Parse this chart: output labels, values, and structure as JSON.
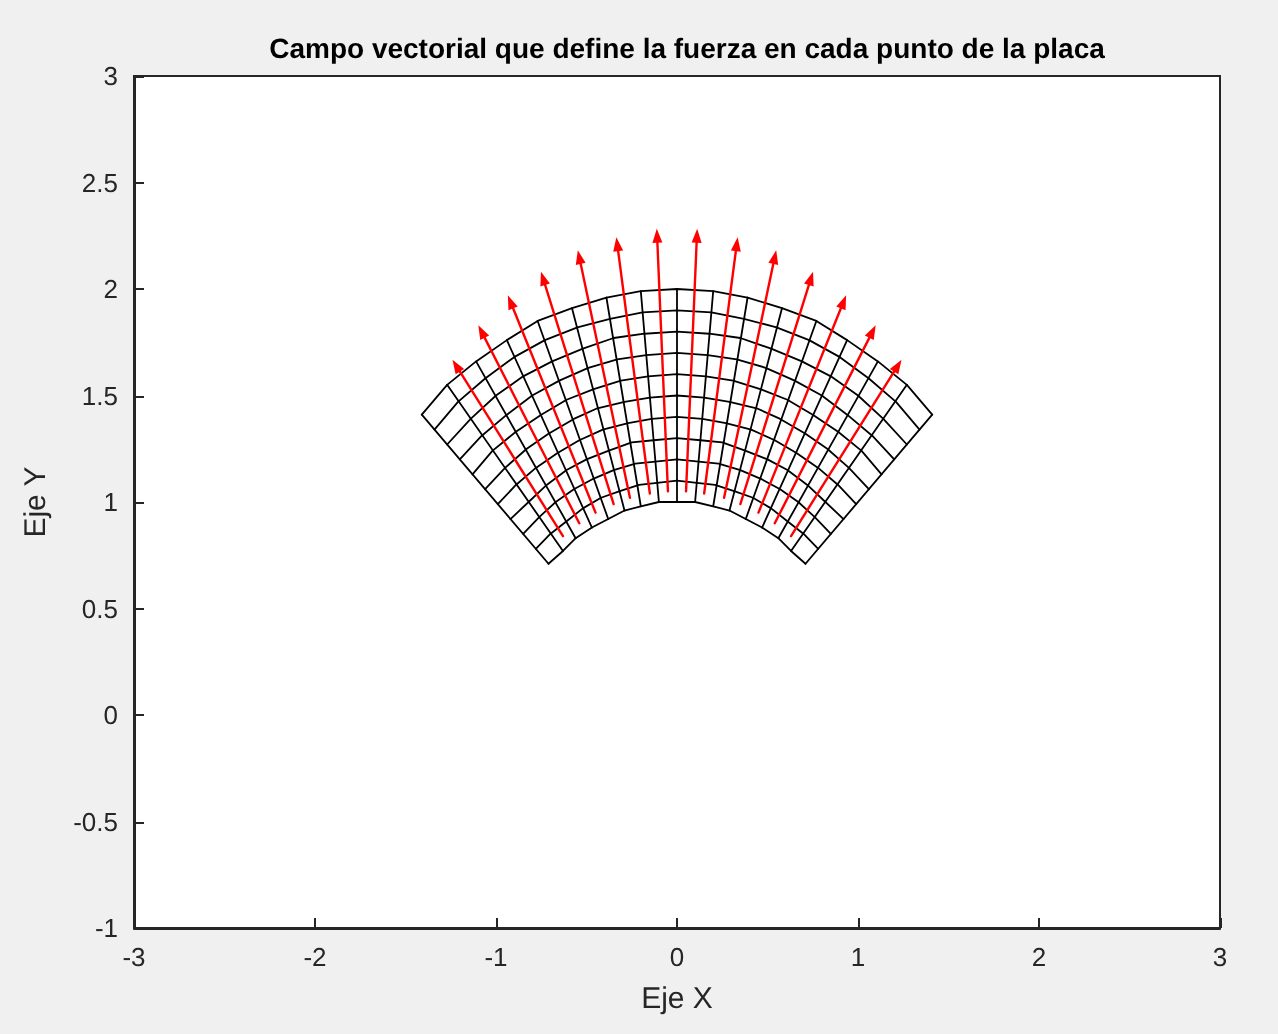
{
  "chart_data": {
    "type": "line",
    "title": "Campo vectorial que define la fuerza en cada punto de la placa",
    "xlabel": "Eje X",
    "ylabel": "Eje Y",
    "xlim": [
      -3,
      3
    ],
    "xticks": [
      -3,
      -2,
      -1,
      0,
      1,
      2,
      3
    ],
    "ylim": [
      -1,
      3
    ],
    "yticks": [
      -1,
      -0.5,
      0,
      0.5,
      1,
      1.5,
      2,
      2.5,
      3
    ],
    "marker": "none",
    "line_style": "solid",
    "series": [
      {
        "color": "#000000",
        "x": [
          -0.71,
          -0.63,
          -0.56,
          -0.47,
          -0.38,
          -0.29,
          -0.2,
          -0.1,
          0,
          0.1,
          0.2,
          0.29,
          0.38,
          0.47,
          0.56,
          0.63,
          0.71
        ],
        "values": [
          0.71,
          0.77,
          0.83,
          0.88,
          0.92,
          0.96,
          0.98,
          1.0,
          1,
          1.0,
          0.98,
          0.96,
          0.92,
          0.88,
          0.83,
          0.77,
          0.71
        ]
      },
      {
        "color": "#000000",
        "x": [
          -0.78,
          -0.7,
          -0.61,
          -0.52,
          -0.42,
          -0.32,
          -0.21,
          -0.11,
          0,
          0.11,
          0.21,
          0.32,
          0.42,
          0.52,
          0.61,
          0.7,
          0.78
        ],
        "values": [
          0.78,
          0.85,
          0.91,
          0.97,
          1.02,
          1.05,
          1.08,
          1.09,
          1.1,
          1.09,
          1.08,
          1.05,
          1.02,
          0.97,
          0.91,
          0.85,
          0.78
        ]
      },
      {
        "color": "#000000",
        "x": [
          -0.85,
          -0.76,
          -0.67,
          -0.57,
          -0.46,
          -0.35,
          -0.23,
          -0.12,
          0,
          0.12,
          0.23,
          0.35,
          0.46,
          0.57,
          0.67,
          0.76,
          0.85
        ],
        "values": [
          0.85,
          0.93,
          1.0,
          1.06,
          1.11,
          1.15,
          1.18,
          1.19,
          1.2,
          1.19,
          1.18,
          1.15,
          1.11,
          1.06,
          1.0,
          0.93,
          0.85
        ]
      },
      {
        "color": "#000000",
        "x": [
          -0.92,
          -0.82,
          -0.72,
          -0.61,
          -0.5,
          -0.38,
          -0.25,
          -0.13,
          0,
          0.13,
          0.25,
          0.38,
          0.5,
          0.61,
          0.72,
          0.82,
          0.92
        ],
        "values": [
          0.92,
          1.0,
          1.08,
          1.15,
          1.2,
          1.24,
          1.28,
          1.29,
          1.3,
          1.29,
          1.28,
          1.24,
          1.2,
          1.15,
          1.08,
          1.0,
          0.92
        ]
      },
      {
        "color": "#000000",
        "x": [
          -0.99,
          -0.89,
          -0.78,
          -0.66,
          -0.54,
          -0.41,
          -0.27,
          -0.14,
          0,
          0.14,
          0.27,
          0.41,
          0.54,
          0.66,
          0.78,
          0.89,
          0.99
        ],
        "values": [
          0.99,
          1.08,
          1.16,
          1.23,
          1.29,
          1.34,
          1.37,
          1.39,
          1.4,
          1.39,
          1.37,
          1.34,
          1.29,
          1.23,
          1.16,
          1.08,
          0.99
        ]
      },
      {
        "color": "#000000",
        "x": [
          -1.06,
          -0.95,
          -0.83,
          -0.71,
          -0.57,
          -0.44,
          -0.29,
          -0.15,
          0,
          0.15,
          0.29,
          0.44,
          0.57,
          0.71,
          0.83,
          0.95,
          1.06
        ],
        "values": [
          1.06,
          1.16,
          1.25,
          1.32,
          1.39,
          1.44,
          1.47,
          1.49,
          1.5,
          1.49,
          1.47,
          1.44,
          1.39,
          1.32,
          1.25,
          1.16,
          1.06
        ]
      },
      {
        "color": "#000000",
        "x": [
          -1.13,
          -1.02,
          -0.89,
          -0.75,
          -0.61,
          -0.46,
          -0.31,
          -0.16,
          0,
          0.16,
          0.31,
          0.46,
          0.61,
          0.75,
          0.89,
          1.02,
          1.13
        ],
        "values": [
          1.13,
          1.24,
          1.33,
          1.41,
          1.48,
          1.53,
          1.57,
          1.59,
          1.6,
          1.59,
          1.57,
          1.53,
          1.48,
          1.41,
          1.33,
          1.24,
          1.13
        ]
      },
      {
        "color": "#000000",
        "x": [
          -1.2,
          -1.08,
          -0.94,
          -0.8,
          -0.65,
          -0.49,
          -0.33,
          -0.17,
          0,
          0.17,
          0.33,
          0.49,
          0.65,
          0.8,
          0.94,
          1.08,
          1.2
        ],
        "values": [
          1.2,
          1.31,
          1.41,
          1.5,
          1.57,
          1.63,
          1.67,
          1.69,
          1.7,
          1.69,
          1.67,
          1.63,
          1.57,
          1.5,
          1.41,
          1.31,
          1.2
        ]
      },
      {
        "color": "#000000",
        "x": [
          -1.27,
          -1.14,
          -1.0,
          -0.85,
          -0.69,
          -0.52,
          -0.35,
          -0.18,
          0,
          0.18,
          0.35,
          0.52,
          0.69,
          0.85,
          1.0,
          1.14,
          1.27
        ],
        "values": [
          1.27,
          1.39,
          1.5,
          1.59,
          1.66,
          1.72,
          1.77,
          1.79,
          1.8,
          1.79,
          1.77,
          1.72,
          1.66,
          1.59,
          1.5,
          1.39,
          1.27
        ]
      },
      {
        "color": "#000000",
        "x": [
          -1.34,
          -1.21,
          -1.06,
          -0.9,
          -0.73,
          -0.55,
          -0.37,
          -0.19,
          0,
          0.19,
          0.37,
          0.55,
          0.73,
          0.9,
          1.06,
          1.21,
          1.34
        ],
        "values": [
          1.34,
          1.47,
          1.58,
          1.68,
          1.76,
          1.82,
          1.86,
          1.89,
          1.9,
          1.89,
          1.86,
          1.82,
          1.76,
          1.68,
          1.58,
          1.47,
          1.34
        ]
      },
      {
        "color": "#000000",
        "x": [
          -1.41,
          -1.27,
          -1.11,
          -0.94,
          -0.77,
          -0.58,
          -0.39,
          -0.2,
          0,
          0.2,
          0.39,
          0.58,
          0.77,
          0.94,
          1.11,
          1.27,
          1.41
        ],
        "values": [
          1.41,
          1.55,
          1.66,
          1.76,
          1.85,
          1.91,
          1.96,
          1.99,
          2,
          1.99,
          1.96,
          1.91,
          1.85,
          1.76,
          1.66,
          1.55,
          1.41
        ]
      },
      {
        "color": "#000000",
        "x": [
          -0.71,
          -1.41
        ],
        "values": [
          0.71,
          1.41
        ]
      },
      {
        "color": "#000000",
        "x": [
          -0.63,
          -1.27
        ],
        "values": [
          0.77,
          1.55
        ]
      },
      {
        "color": "#000000",
        "x": [
          -0.56,
          -1.11
        ],
        "values": [
          0.83,
          1.66
        ]
      },
      {
        "color": "#000000",
        "x": [
          -0.47,
          -0.94
        ],
        "values": [
          0.88,
          1.76
        ]
      },
      {
        "color": "#000000",
        "x": [
          -0.38,
          -0.77
        ],
        "values": [
          0.92,
          1.85
        ]
      },
      {
        "color": "#000000",
        "x": [
          -0.29,
          -0.58
        ],
        "values": [
          0.96,
          1.91
        ]
      },
      {
        "color": "#000000",
        "x": [
          -0.2,
          -0.39
        ],
        "values": [
          0.98,
          1.96
        ]
      },
      {
        "color": "#000000",
        "x": [
          -0.1,
          -0.2
        ],
        "values": [
          1.0,
          1.99
        ]
      },
      {
        "color": "#000000",
        "x": [
          0,
          0
        ],
        "values": [
          1,
          2
        ]
      },
      {
        "color": "#000000",
        "x": [
          0.1,
          0.2
        ],
        "values": [
          1.0,
          1.99
        ]
      },
      {
        "color": "#000000",
        "x": [
          0.2,
          0.39
        ],
        "values": [
          0.98,
          1.96
        ]
      },
      {
        "color": "#000000",
        "x": [
          0.29,
          0.58
        ],
        "values": [
          0.96,
          1.91
        ]
      },
      {
        "color": "#000000",
        "x": [
          0.38,
          0.77
        ],
        "values": [
          0.92,
          1.85
        ]
      },
      {
        "color": "#000000",
        "x": [
          0.47,
          0.94
        ],
        "values": [
          0.88,
          1.76
        ]
      },
      {
        "color": "#000000",
        "x": [
          0.56,
          1.11
        ],
        "values": [
          0.83,
          1.66
        ]
      },
      {
        "color": "#000000",
        "x": [
          0.63,
          1.27
        ],
        "values": [
          0.77,
          1.55
        ]
      },
      {
        "color": "#000000",
        "x": [
          0.71,
          1.41
        ],
        "values": [
          0.71,
          1.41
        ]
      },
      {
        "color": "#ff0000",
        "marker": "triangle",
        "x": [
          -0.63,
          -1.22
        ],
        "values": [
          0.84,
          1.64
        ]
      },
      {
        "color": "#ff0000",
        "marker": "triangle",
        "x": [
          -0.54,
          -1.08
        ],
        "values": [
          0.9,
          1.8
        ]
      },
      {
        "color": "#ff0000",
        "marker": "triangle",
        "x": [
          -0.45,
          -0.92
        ],
        "values": [
          0.95,
          1.94
        ]
      },
      {
        "color": "#ff0000",
        "marker": "triangle",
        "x": [
          -0.35,
          -0.74
        ],
        "values": [
          0.99,
          2.05
        ]
      },
      {
        "color": "#ff0000",
        "marker": "triangle",
        "x": [
          -0.26,
          -0.54
        ],
        "values": [
          1.02,
          2.15
        ]
      },
      {
        "color": "#ff0000",
        "marker": "triangle",
        "x": [
          -0.15,
          -0.33
        ],
        "values": [
          1.04,
          2.21
        ]
      },
      {
        "color": "#ff0000",
        "marker": "triangle",
        "x": [
          -0.05,
          -0.11
        ],
        "values": [
          1.05,
          2.25
        ]
      },
      {
        "color": "#ff0000",
        "marker": "triangle",
        "x": [
          0.05,
          0.11
        ],
        "values": [
          1.05,
          2.25
        ]
      },
      {
        "color": "#ff0000",
        "marker": "triangle",
        "x": [
          0.15,
          0.33
        ],
        "values": [
          1.04,
          2.21
        ]
      },
      {
        "color": "#ff0000",
        "marker": "triangle",
        "x": [
          0.26,
          0.54
        ],
        "values": [
          1.02,
          2.15
        ]
      },
      {
        "color": "#ff0000",
        "marker": "triangle",
        "x": [
          0.35,
          0.74
        ],
        "values": [
          0.99,
          2.05
        ]
      },
      {
        "color": "#ff0000",
        "marker": "triangle",
        "x": [
          0.45,
          0.92
        ],
        "values": [
          0.95,
          1.94
        ]
      },
      {
        "color": "#ff0000",
        "marker": "triangle",
        "x": [
          0.54,
          1.08
        ],
        "values": [
          0.9,
          1.8
        ]
      },
      {
        "color": "#ff0000",
        "marker": "triangle",
        "x": [
          0.63,
          1.22
        ],
        "values": [
          0.84,
          1.64
        ]
      }
    ]
  }
}
